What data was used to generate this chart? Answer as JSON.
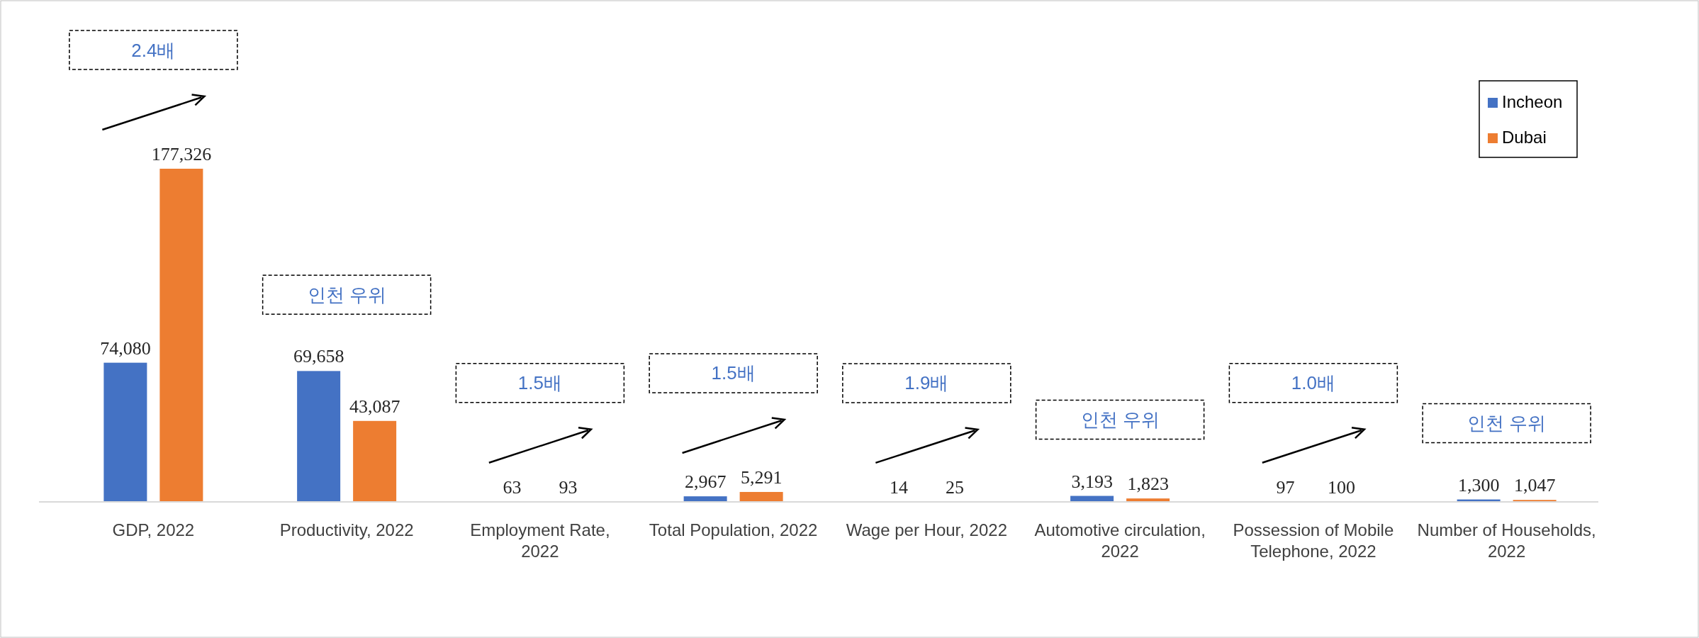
{
  "chart_data": {
    "type": "bar",
    "categories": [
      "GDP, 2022",
      "Productivity, 2022",
      "Employment Rate, 2022",
      "Total Population, 2022",
      "Wage per Hour, 2022",
      "Automotive circulation, 2022",
      "Possession of Mobile Telephone, 2022",
      "Number of Households, 2022"
    ],
    "series": [
      {
        "name": "Incheon",
        "color": "#4472c4",
        "values": [
          74080,
          69658,
          63,
          2967,
          14,
          3193,
          97,
          1300
        ],
        "value_labels": [
          "74,080",
          "69,658",
          "63",
          "2,967",
          "14",
          "3,193",
          "97",
          "1,300"
        ]
      },
      {
        "name": "Dubai",
        "color": "#ed7d31",
        "values": [
          177326,
          43087,
          93,
          5291,
          25,
          1823,
          100,
          1047
        ],
        "value_labels": [
          "177,326",
          "43,087",
          "93",
          "5,291",
          "25",
          "1,823",
          "100",
          "1,047"
        ]
      }
    ],
    "legend": "top right",
    "annotations": [
      "2.4배",
      "인천 우위",
      "1.5배",
      "1.5배",
      "1.9배",
      "인천 우위",
      "1.0배",
      "인천 우위"
    ]
  }
}
